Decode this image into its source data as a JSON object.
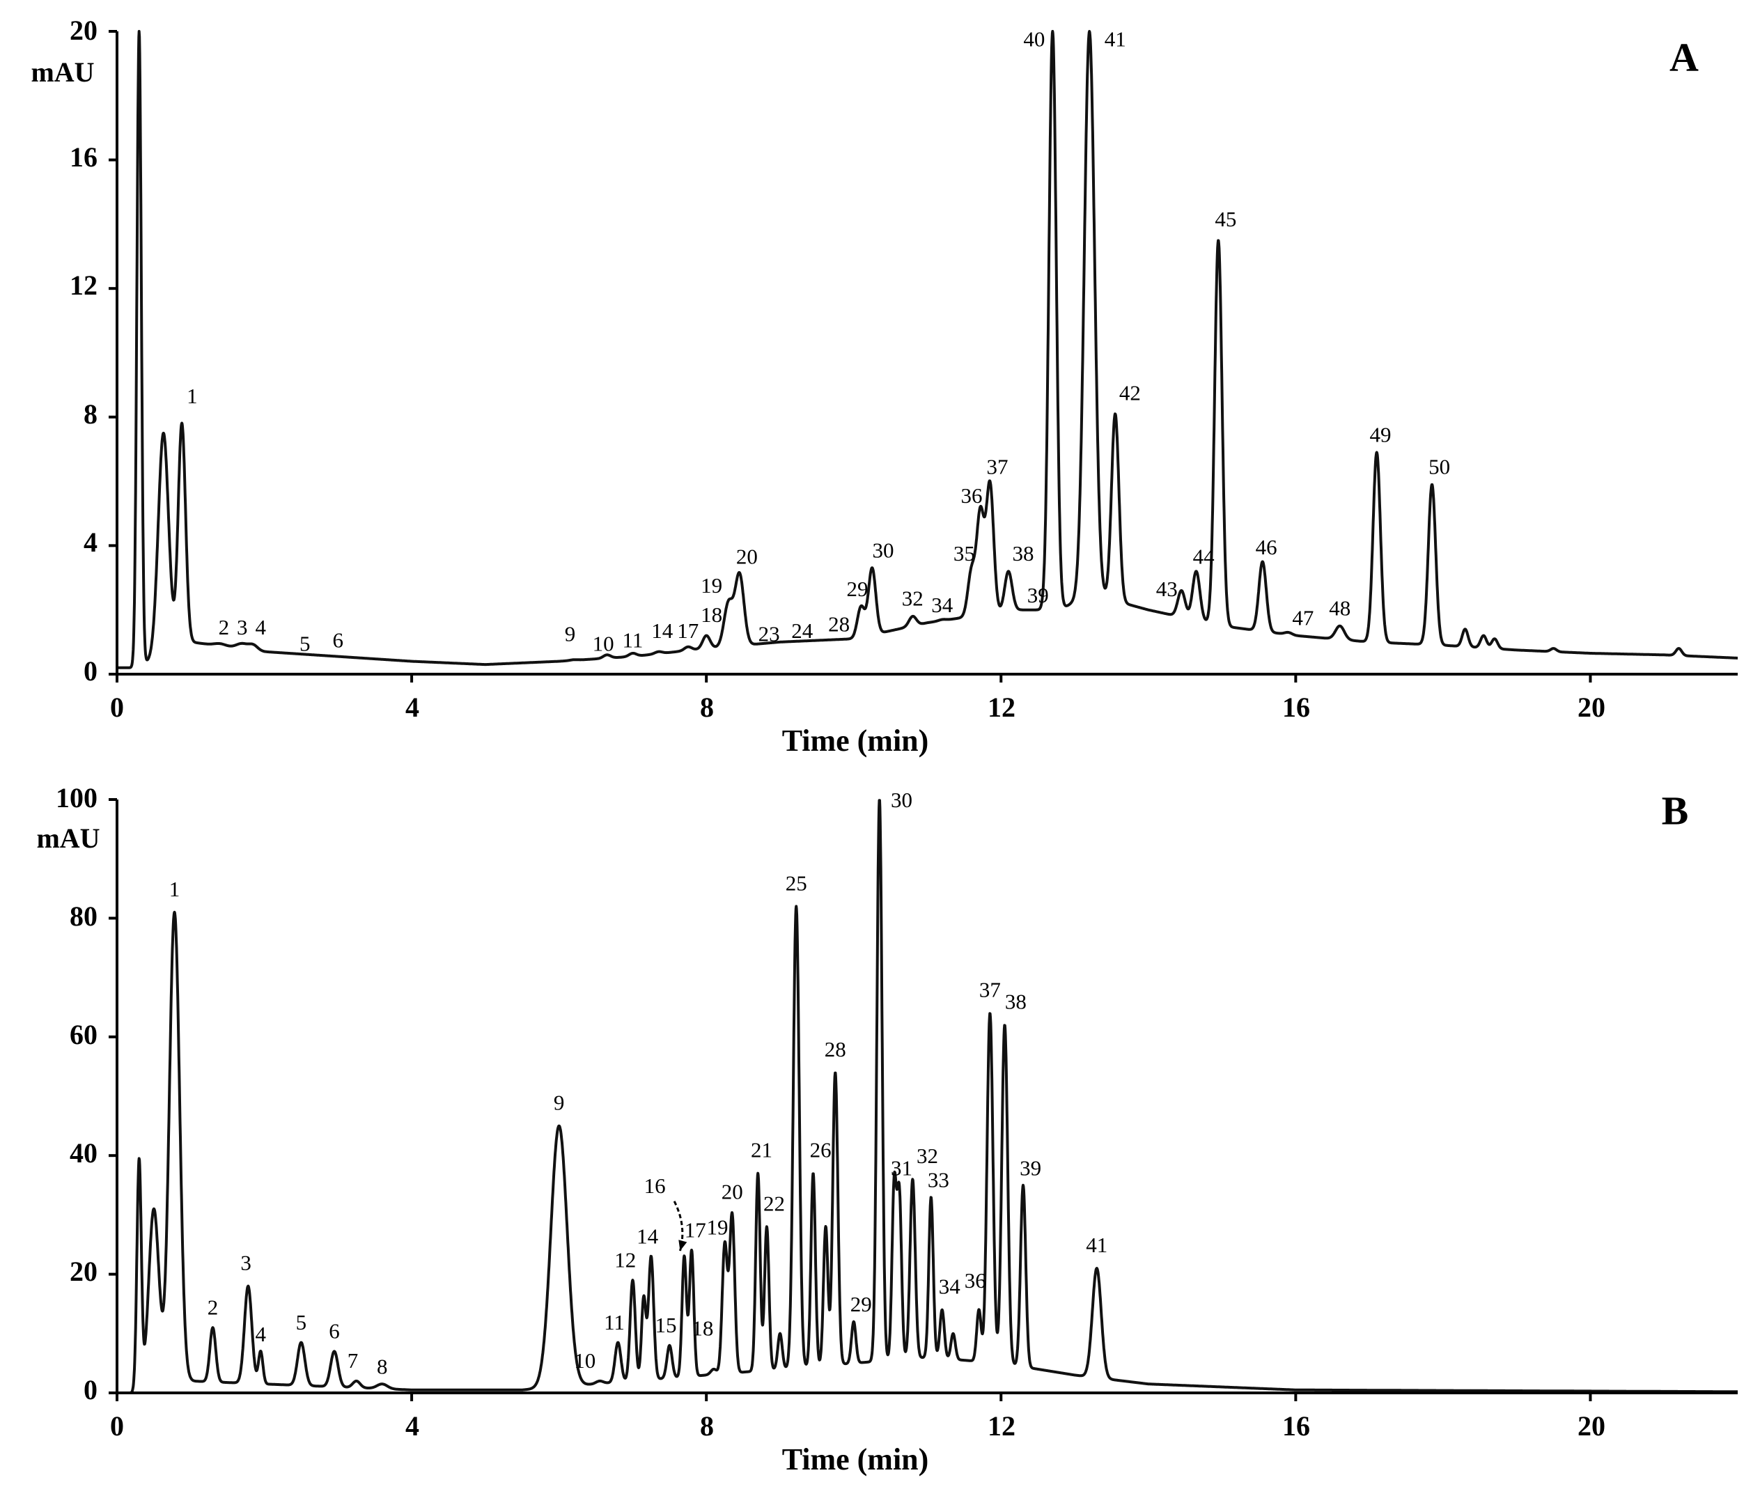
{
  "chart_data": [
    {
      "type": "line",
      "panel": "A",
      "xlabel": "Time (min)",
      "ylabel": "mAU",
      "xlim": [
        0,
        22
      ],
      "ylim": [
        0,
        20
      ],
      "x_ticks": [
        0,
        4,
        8,
        12,
        16,
        20
      ],
      "y_ticks": [
        0,
        4,
        8,
        12,
        16,
        20
      ],
      "baseline": [
        [
          0,
          0.2
        ],
        [
          0.25,
          0.2
        ],
        [
          1.0,
          1.0
        ],
        [
          2,
          0.7
        ],
        [
          4,
          0.4
        ],
        [
          5,
          0.3
        ],
        [
          6,
          0.4
        ],
        [
          7,
          0.55
        ],
        [
          8,
          0.8
        ],
        [
          9,
          1.0
        ],
        [
          10,
          1.1
        ],
        [
          11,
          1.6
        ],
        [
          12.2,
          2.0
        ],
        [
          12.8,
          2.0
        ],
        [
          13.2,
          2.5
        ],
        [
          14,
          2.0
        ],
        [
          15,
          1.5
        ],
        [
          16,
          1.2
        ],
        [
          17,
          1.0
        ],
        [
          18,
          0.9
        ],
        [
          19,
          0.75
        ],
        [
          20,
          0.65
        ],
        [
          21,
          0.6
        ],
        [
          22,
          0.5
        ]
      ],
      "peaks": [
        {
          "t": 0.3,
          "h": 20,
          "w": 0.03
        },
        {
          "t": 0.63,
          "h": 7.5,
          "w": 0.07
        },
        {
          "label": "1",
          "t": 0.88,
          "h": 7.8,
          "w": 0.05
        },
        {
          "label": "2",
          "t": 1.4,
          "h": 0.95,
          "w": 0.08
        },
        {
          "label": "3",
          "t": 1.7,
          "h": 0.95,
          "w": 0.08
        },
        {
          "label": "4",
          "t": 1.85,
          "h": 0.9,
          "w": 0.06
        },
        {
          "label": "5",
          "t": 2.5,
          "h": 0.5,
          "w": 0.05
        },
        {
          "label": "6",
          "t": 3.0,
          "h": 0.5,
          "w": 0.05
        },
        {
          "label": "9",
          "t": 6.2,
          "h": 0.45,
          "w": 0.05
        },
        {
          "label": "10",
          "t": 6.65,
          "h": 0.6,
          "w": 0.05
        },
        {
          "label": "11",
          "t": 7.0,
          "h": 0.65,
          "w": 0.05
        },
        {
          "label": "14",
          "t": 7.35,
          "h": 0.7,
          "w": 0.05
        },
        {
          "label": "17",
          "t": 7.75,
          "h": 0.85,
          "w": 0.05
        },
        {
          "label": "18",
          "t": 8.0,
          "h": 1.2,
          "w": 0.05
        },
        {
          "label": "19",
          "t": 8.3,
          "h": 2.2,
          "w": 0.06
        },
        {
          "label": "20",
          "t": 8.45,
          "h": 3.1,
          "w": 0.06
        },
        {
          "label": "23",
          "t": 8.9,
          "h": 0.9,
          "w": 0.05
        },
        {
          "label": "24",
          "t": 9.3,
          "h": 1.0,
          "w": 0.05
        },
        {
          "label": "28",
          "t": 9.8,
          "h": 1.0,
          "w": 0.05
        },
        {
          "label": "29",
          "t": 10.1,
          "h": 2.1,
          "w": 0.05
        },
        {
          "label": "30",
          "t": 10.25,
          "h": 3.3,
          "w": 0.05
        },
        {
          "label": "32",
          "t": 10.8,
          "h": 1.8,
          "w": 0.05
        },
        {
          "label": "34",
          "t": 11.2,
          "h": 1.7,
          "w": 0.05
        },
        {
          "label": "35",
          "t": 11.6,
          "h": 3.2,
          "w": 0.05
        },
        {
          "label": "36",
          "t": 11.72,
          "h": 5.0,
          "w": 0.05
        },
        {
          "label": "37",
          "t": 11.85,
          "h": 5.9,
          "w": 0.05
        },
        {
          "label": "38",
          "t": 12.1,
          "h": 3.2,
          "w": 0.05
        },
        {
          "label": "39",
          "t": 12.4,
          "h": 2.0,
          "w": 0.05
        },
        {
          "label": "40",
          "t": 12.7,
          "h": 20,
          "w": 0.05
        },
        {
          "label": "41",
          "t": 13.2,
          "h": 20,
          "w": 0.07
        },
        {
          "label": "42",
          "t": 13.55,
          "h": 8.1,
          "w": 0.05
        },
        {
          "label": "43",
          "t": 14.45,
          "h": 2.6,
          "w": 0.05
        },
        {
          "label": "44",
          "t": 14.65,
          "h": 3.2,
          "w": 0.05
        },
        {
          "label": "45",
          "t": 14.95,
          "h": 13.5,
          "w": 0.05
        },
        {
          "label": "46",
          "t": 15.55,
          "h": 3.5,
          "w": 0.05
        },
        {
          "label": "47",
          "t": 15.9,
          "h": 1.3,
          "w": 0.05
        },
        {
          "label": "48",
          "t": 16.6,
          "h": 1.5,
          "w": 0.06
        },
        {
          "label": "49",
          "t": 17.1,
          "h": 6.9,
          "w": 0.05
        },
        {
          "label": "50",
          "t": 17.85,
          "h": 5.9,
          "w": 0.05
        },
        {
          "t": 18.3,
          "h": 1.4,
          "w": 0.04
        },
        {
          "t": 18.55,
          "h": 1.2,
          "w": 0.04
        },
        {
          "t": 18.7,
          "h": 1.1,
          "w": 0.04
        },
        {
          "t": 19.5,
          "h": 0.8,
          "w": 0.04
        },
        {
          "t": 21.2,
          "h": 0.8,
          "w": 0.04
        }
      ]
    },
    {
      "type": "line",
      "panel": "B",
      "xlabel": "Time (min)",
      "ylabel": "mAU",
      "xlim": [
        0,
        22
      ],
      "ylim": [
        0,
        100
      ],
      "x_ticks": [
        0,
        4,
        8,
        12,
        16,
        20
      ],
      "y_ticks": [
        0,
        20,
        40,
        60,
        80,
        100
      ],
      "baseline": [
        [
          0,
          0
        ],
        [
          0.25,
          0
        ],
        [
          1,
          2
        ],
        [
          2,
          1.5
        ],
        [
          4,
          0.5
        ],
        [
          5.5,
          0.5
        ],
        [
          7,
          2
        ],
        [
          8,
          3
        ],
        [
          9,
          4
        ],
        [
          10,
          5
        ],
        [
          11,
          6
        ],
        [
          12,
          5
        ],
        [
          13,
          3
        ],
        [
          14,
          1.5
        ],
        [
          16,
          0.5
        ],
        [
          22,
          0.2
        ]
      ],
      "peaks": [
        {
          "t": 0.3,
          "h": 39,
          "w": 0.03
        },
        {
          "t": 0.5,
          "h": 31,
          "w": 0.07
        },
        {
          "label": "1",
          "t": 0.78,
          "h": 81,
          "w": 0.07
        },
        {
          "label": "2",
          "t": 1.3,
          "h": 11,
          "w": 0.04
        },
        {
          "label": "3",
          "t": 1.78,
          "h": 18,
          "w": 0.05
        },
        {
          "label": "4",
          "t": 1.95,
          "h": 7,
          "w": 0.03
        },
        {
          "label": "5",
          "t": 2.5,
          "h": 8.5,
          "w": 0.05
        },
        {
          "label": "6",
          "t": 2.95,
          "h": 7,
          "w": 0.05
        },
        {
          "label": "7",
          "t": 3.25,
          "h": 2,
          "w": 0.05
        },
        {
          "label": "8",
          "t": 3.6,
          "h": 1.5,
          "w": 0.07
        },
        {
          "label": "9",
          "t": 6.0,
          "h": 45,
          "w": 0.11
        },
        {
          "label": "10",
          "t": 6.55,
          "h": 2,
          "w": 0.05
        },
        {
          "label": "11",
          "t": 6.8,
          "h": 8.5,
          "w": 0.04
        },
        {
          "label": "12",
          "t": 7.0,
          "h": 19,
          "w": 0.035
        },
        {
          "t": 7.15,
          "h": 16,
          "w": 0.03
        },
        {
          "label": "14",
          "t": 7.25,
          "h": 23,
          "w": 0.035
        },
        {
          "label": "15",
          "t": 7.5,
          "h": 8,
          "w": 0.035
        },
        {
          "label": "16",
          "t": 7.7,
          "h": 23,
          "w": 0.03
        },
        {
          "label": "17",
          "t": 7.8,
          "h": 24,
          "w": 0.03
        },
        {
          "label": "18",
          "t": 8.1,
          "h": 4,
          "w": 0.04
        },
        {
          "label": "19",
          "t": 8.25,
          "h": 25,
          "w": 0.035
        },
        {
          "label": "20",
          "t": 8.35,
          "h": 30,
          "w": 0.035
        },
        {
          "label": "21",
          "t": 8.7,
          "h": 37,
          "w": 0.03
        },
        {
          "label": "22",
          "t": 8.82,
          "h": 28,
          "w": 0.03
        },
        {
          "t": 9.0,
          "h": 10,
          "w": 0.03
        },
        {
          "label": "25",
          "t": 9.22,
          "h": 82,
          "w": 0.04
        },
        {
          "label": "26",
          "t": 9.45,
          "h": 37,
          "w": 0.03
        },
        {
          "t": 9.62,
          "h": 28,
          "w": 0.03
        },
        {
          "label": "28",
          "t": 9.75,
          "h": 54,
          "w": 0.035
        },
        {
          "label": "29",
          "t": 10.0,
          "h": 12,
          "w": 0.03
        },
        {
          "label": "30",
          "t": 10.35,
          "h": 100,
          "w": 0.035
        },
        {
          "label": "31",
          "t": 10.55,
          "h": 35,
          "w": 0.03
        },
        {
          "t": 10.62,
          "h": 33,
          "w": 0.03
        },
        {
          "label": "32",
          "t": 10.8,
          "h": 36,
          "w": 0.035
        },
        {
          "label": "33",
          "t": 11.05,
          "h": 33,
          "w": 0.03
        },
        {
          "label": "34",
          "t": 11.2,
          "h": 14,
          "w": 0.03
        },
        {
          "t": 11.35,
          "h": 10,
          "w": 0.03
        },
        {
          "label": "36",
          "t": 11.7,
          "h": 14,
          "w": 0.03
        },
        {
          "label": "37",
          "t": 11.85,
          "h": 64,
          "w": 0.04
        },
        {
          "label": "38",
          "t": 12.05,
          "h": 62,
          "w": 0.04
        },
        {
          "label": "39",
          "t": 12.3,
          "h": 35,
          "w": 0.035
        },
        {
          "t": 13.0,
          "h": 3,
          "w": 0.03
        },
        {
          "label": "41",
          "t": 13.3,
          "h": 21,
          "w": 0.06
        }
      ]
    }
  ],
  "panels": [
    {
      "letter": "A",
      "unit": "mAU",
      "x_title": "Time (min)",
      "x_tick_labels": [
        "0",
        "4",
        "8",
        "12",
        "16",
        "20"
      ],
      "y_tick_labels": [
        "0",
        "4",
        "8",
        "12",
        "16",
        "20"
      ],
      "peak_labels": [
        {
          "text": "1",
          "t": 1.02,
          "v": 8.3
        },
        {
          "text": "2",
          "t": 1.45,
          "v": 1.1
        },
        {
          "text": "3",
          "t": 1.7,
          "v": 1.1
        },
        {
          "text": "4",
          "t": 1.95,
          "v": 1.1
        },
        {
          "text": "5",
          "t": 2.55,
          "v": 0.6
        },
        {
          "text": "6",
          "t": 3.0,
          "v": 0.7
        },
        {
          "text": "9",
          "t": 6.15,
          "v": 0.9
        },
        {
          "text": "10",
          "t": 6.6,
          "v": 0.6
        },
        {
          "text": "11",
          "t": 7.0,
          "v": 0.7
        },
        {
          "text": "14",
          "t": 7.4,
          "v": 1.0
        },
        {
          "text": "17",
          "t": 7.75,
          "v": 1.0
        },
        {
          "text": "18",
          "t": 8.07,
          "v": 1.5
        },
        {
          "text": "19",
          "t": 8.07,
          "v": 2.4
        },
        {
          "text": "20",
          "t": 8.55,
          "v": 3.3
        },
        {
          "text": "23",
          "t": 8.85,
          "v": 0.9
        },
        {
          "text": "24",
          "t": 9.3,
          "v": 1.0
        },
        {
          "text": "28",
          "t": 9.8,
          "v": 1.2
        },
        {
          "text": "29",
          "t": 10.05,
          "v": 2.3
        },
        {
          "text": "30",
          "t": 10.4,
          "v": 3.5
        },
        {
          "text": "32",
          "t": 10.8,
          "v": 2.0
        },
        {
          "text": "34",
          "t": 11.2,
          "v": 1.8
        },
        {
          "text": "35",
          "t": 11.5,
          "v": 3.4
        },
        {
          "text": "36",
          "t": 11.6,
          "v": 5.2
        },
        {
          "text": "37",
          "t": 11.95,
          "v": 6.1
        },
        {
          "text": "38",
          "t": 12.3,
          "v": 3.4
        },
        {
          "text": "39",
          "t": 12.5,
          "v": 2.1
        },
        {
          "text": "40",
          "t": 12.45,
          "v": 19.4
        },
        {
          "text": "41",
          "t": 13.55,
          "v": 19.4
        },
        {
          "text": "42",
          "t": 13.75,
          "v": 8.4
        },
        {
          "text": "43",
          "t": 14.25,
          "v": 2.3
        },
        {
          "text": "44",
          "t": 14.75,
          "v": 3.3
        },
        {
          "text": "45",
          "t": 15.05,
          "v": 13.8
        },
        {
          "text": "46",
          "t": 15.6,
          "v": 3.6
        },
        {
          "text": "47",
          "t": 16.1,
          "v": 1.4
        },
        {
          "text": "48",
          "t": 16.6,
          "v": 1.7
        },
        {
          "text": "49",
          "t": 17.15,
          "v": 7.1
        },
        {
          "text": "50",
          "t": 17.95,
          "v": 6.1
        }
      ]
    },
    {
      "letter": "B",
      "unit": "mAU",
      "x_title": "Time (min)",
      "x_tick_labels": [
        "0",
        "4",
        "8",
        "12",
        "16",
        "20"
      ],
      "y_tick_labels": [
        "0",
        "20",
        "40",
        "60",
        "80",
        "100"
      ],
      "peak_labels": [
        {
          "text": "1",
          "t": 0.78,
          "v": 83
        },
        {
          "text": "2",
          "t": 1.3,
          "v": 12.5
        },
        {
          "text": "3",
          "t": 1.75,
          "v": 20
        },
        {
          "text": "4",
          "t": 1.95,
          "v": 8
        },
        {
          "text": "5",
          "t": 2.5,
          "v": 10
        },
        {
          "text": "6",
          "t": 2.95,
          "v": 8.5
        },
        {
          "text": "7",
          "t": 3.2,
          "v": 3.5
        },
        {
          "text": "8",
          "t": 3.6,
          "v": 2.5
        },
        {
          "text": "9",
          "t": 6.0,
          "v": 47
        },
        {
          "text": "10",
          "t": 6.35,
          "v": 3.5
        },
        {
          "text": "11",
          "t": 6.75,
          "v": 10
        },
        {
          "text": "12",
          "t": 6.9,
          "v": 20.5
        },
        {
          "text": "14",
          "t": 7.2,
          "v": 24.5
        },
        {
          "text": "15",
          "t": 7.45,
          "v": 9.5
        },
        {
          "text": "16",
          "t": 7.3,
          "v": 33
        },
        {
          "text": "17",
          "t": 7.85,
          "v": 25.5
        },
        {
          "text": "18",
          "t": 7.95,
          "v": 9
        },
        {
          "text": "19",
          "t": 8.15,
          "v": 26
        },
        {
          "text": "20",
          "t": 8.35,
          "v": 32
        },
        {
          "text": "21",
          "t": 8.75,
          "v": 39
        },
        {
          "text": "22",
          "t": 8.92,
          "v": 30
        },
        {
          "text": "25",
          "t": 9.22,
          "v": 84
        },
        {
          "text": "26",
          "t": 9.55,
          "v": 39
        },
        {
          "text": "28",
          "t": 9.75,
          "v": 56
        },
        {
          "text": "29",
          "t": 10.1,
          "v": 13
        },
        {
          "text": "30",
          "t": 10.65,
          "v": 98
        },
        {
          "text": "31",
          "t": 10.65,
          "v": 36
        },
        {
          "text": "32",
          "t": 11.0,
          "v": 38
        },
        {
          "text": "33",
          "t": 11.15,
          "v": 34
        },
        {
          "text": "34",
          "t": 11.3,
          "v": 16
        },
        {
          "text": "36",
          "t": 11.65,
          "v": 17
        },
        {
          "text": "37",
          "t": 11.85,
          "v": 66
        },
        {
          "text": "38",
          "t": 12.2,
          "v": 64
        },
        {
          "text": "39",
          "t": 12.4,
          "v": 36
        },
        {
          "text": "41",
          "t": 13.3,
          "v": 23
        }
      ]
    }
  ]
}
